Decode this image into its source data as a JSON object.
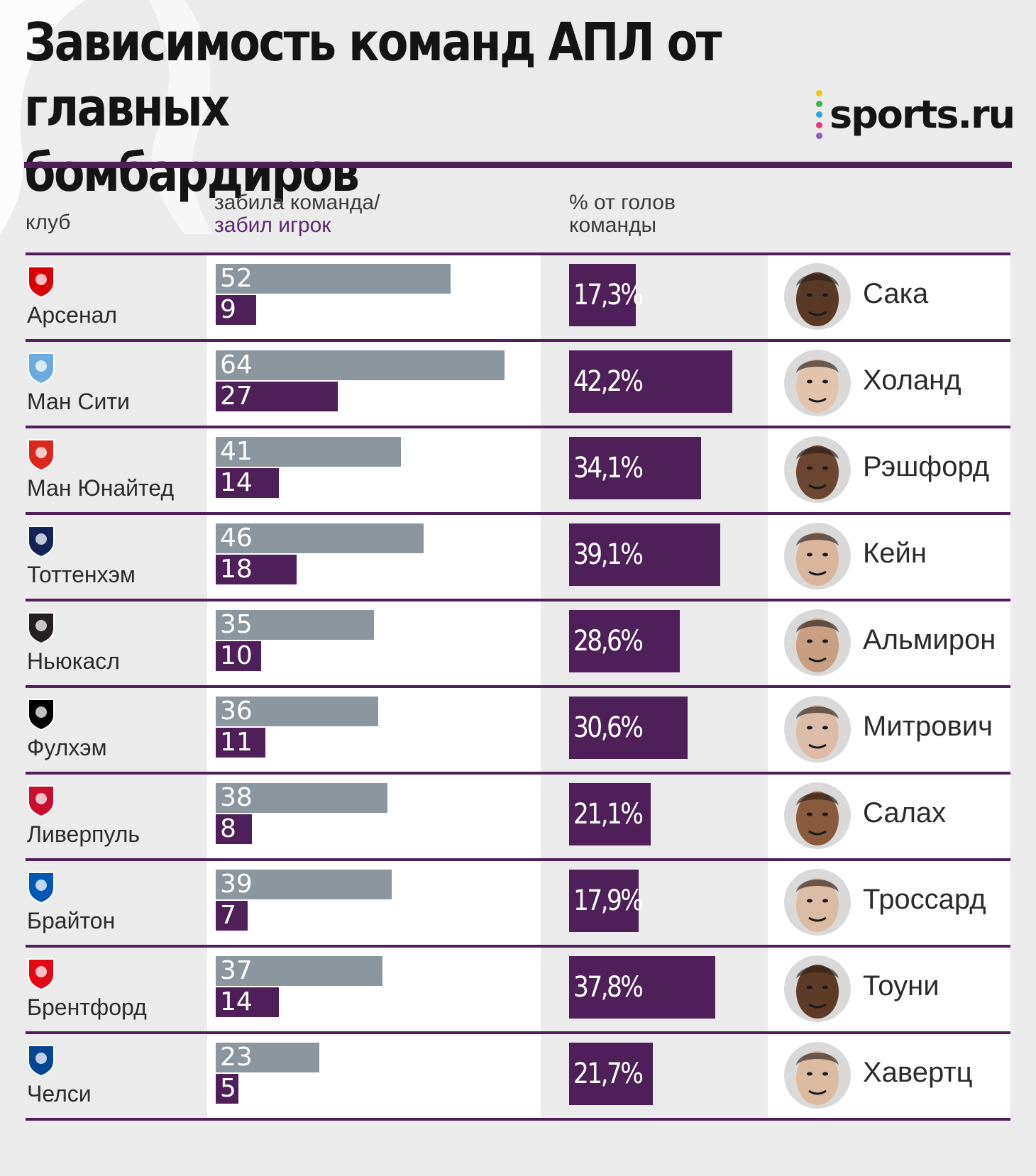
{
  "title_line1": "Зависимость команд АПЛ от главных",
  "title_line2": "бомбардиров",
  "brand": "sports.ru",
  "brand_dot_colors": [
    "#f0c419",
    "#3bb54a",
    "#29a8e0",
    "#e9387e",
    "#8b5fbf"
  ],
  "headers": {
    "club": "клуб",
    "bars_line1": "забила команда/",
    "bars_line2": "забил игрок",
    "pct_line1": "% от голов",
    "pct_line2": "команды"
  },
  "colors": {
    "accent": "#4f1f5a",
    "team_bar": "#8b969f",
    "background": "#ebebec"
  },
  "chart_data": {
    "type": "bar",
    "series": [
      {
        "name": "забила команда",
        "values": [
          52,
          64,
          41,
          46,
          35,
          36,
          38,
          39,
          37,
          23
        ]
      },
      {
        "name": "забил игрок",
        "values": [
          9,
          27,
          14,
          18,
          10,
          11,
          8,
          7,
          14,
          5
        ]
      }
    ],
    "rows": [
      {
        "club": "Арсенал",
        "logo": "arsenal-crest",
        "team_goals": 52,
        "player_goals": 9,
        "pct": 17.3,
        "pct_label": "17,3%",
        "player": "Сака",
        "club_color": "#db0007",
        "skin": "#5a3a26"
      },
      {
        "club": "Ман Сити",
        "logo": "man-city-crest",
        "team_goals": 64,
        "player_goals": 27,
        "pct": 42.2,
        "pct_label": "42,2%",
        "player": "Холанд",
        "club_color": "#6cabdd",
        "skin": "#e2c4ad"
      },
      {
        "club": "Ман Юнайтед",
        "logo": "man-united-crest",
        "team_goals": 41,
        "player_goals": 14,
        "pct": 34.1,
        "pct_label": "34,1%",
        "player": "Рэшфорд",
        "club_color": "#da291c",
        "skin": "#6b4630"
      },
      {
        "club": "Тоттенхэм",
        "logo": "tottenham-crest",
        "team_goals": 46,
        "player_goals": 18,
        "pct": 39.1,
        "pct_label": "39,1%",
        "player": "Кейн",
        "club_color": "#132257",
        "skin": "#d9b59c"
      },
      {
        "club": "Ньюкасл",
        "logo": "newcastle-crest",
        "team_goals": 35,
        "player_goals": 10,
        "pct": 28.6,
        "pct_label": "28,6%",
        "player": "Альмирон",
        "club_color": "#241f20",
        "skin": "#c99f82"
      },
      {
        "club": "Фулхэм",
        "logo": "fulham-crest",
        "team_goals": 36,
        "player_goals": 11,
        "pct": 30.6,
        "pct_label": "30,6%",
        "player": "Митрович",
        "club_color": "#000000",
        "skin": "#dcbca6"
      },
      {
        "club": "Ливерпуль",
        "logo": "liverpool-crest",
        "team_goals": 38,
        "player_goals": 8,
        "pct": 21.1,
        "pct_label": "21,1%",
        "player": "Салах",
        "club_color": "#c8102e",
        "skin": "#8a5a3c"
      },
      {
        "club": "Брайтон",
        "logo": "brighton-crest",
        "team_goals": 39,
        "player_goals": 7,
        "pct": 17.9,
        "pct_label": "17,9%",
        "player": "Троссард",
        "club_color": "#0057b8",
        "skin": "#dcbba3"
      },
      {
        "club": "Брентфорд",
        "logo": "brentford-crest",
        "team_goals": 37,
        "player_goals": 14,
        "pct": 37.8,
        "pct_label": "37,8%",
        "player": "Тоуни",
        "club_color": "#e30613",
        "skin": "#5e3b27"
      },
      {
        "club": "Челси",
        "logo": "chelsea-crest",
        "team_goals": 23,
        "player_goals": 5,
        "pct": 21.7,
        "pct_label": "21,7%",
        "player": "Хавертц",
        "club_color": "#034694",
        "skin": "#dcbaa0"
      }
    ]
  }
}
